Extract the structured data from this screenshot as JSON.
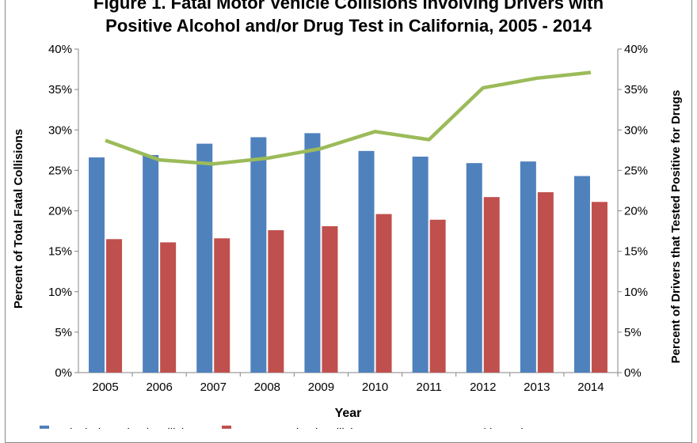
{
  "chart_data": {
    "type": "bar",
    "title_line1": "Figure 1. Fatal Motor Vehicle Collisions Involving Drivers with",
    "title_line2": "Positive Alcohol and/or Drug Test in California, 2005 - 2014",
    "xlabel": "Year",
    "ylabel": "Percent of Total Fatal Collisions",
    "y2label": "Percent of Drivers that Tested Positive for Drugs",
    "categories": [
      "2005",
      "2006",
      "2007",
      "2008",
      "2009",
      "2010",
      "2011",
      "2012",
      "2013",
      "2014"
    ],
    "ylim": [
      0,
      40
    ],
    "y2lim": [
      0,
      40
    ],
    "yticks": [
      "0%",
      "5%",
      "10%",
      "15%",
      "20%",
      "25%",
      "30%",
      "35%",
      "40%"
    ],
    "series": [
      {
        "name": "Alcohol-Involved Collisions",
        "type": "bar",
        "axis": "left",
        "color": "#4f81bd",
        "values": [
          26.6,
          26.9,
          28.3,
          29.1,
          29.6,
          27.4,
          26.7,
          25.9,
          26.1,
          24.3
        ]
      },
      {
        "name": "Drug-Involved Collisions",
        "type": "bar",
        "axis": "left",
        "color": "#c0504d",
        "values": [
          16.5,
          16.1,
          16.6,
          17.6,
          18.1,
          19.6,
          18.9,
          21.7,
          22.3,
          21.1
        ]
      },
      {
        "name": "Drug Positive Drivers",
        "type": "line",
        "axis": "right",
        "color": "#9bbb59",
        "values": [
          28.7,
          26.3,
          25.8,
          26.5,
          27.7,
          29.8,
          28.8,
          35.2,
          36.4,
          37.1
        ]
      }
    ],
    "legend_position": "bottom",
    "grid": false
  }
}
